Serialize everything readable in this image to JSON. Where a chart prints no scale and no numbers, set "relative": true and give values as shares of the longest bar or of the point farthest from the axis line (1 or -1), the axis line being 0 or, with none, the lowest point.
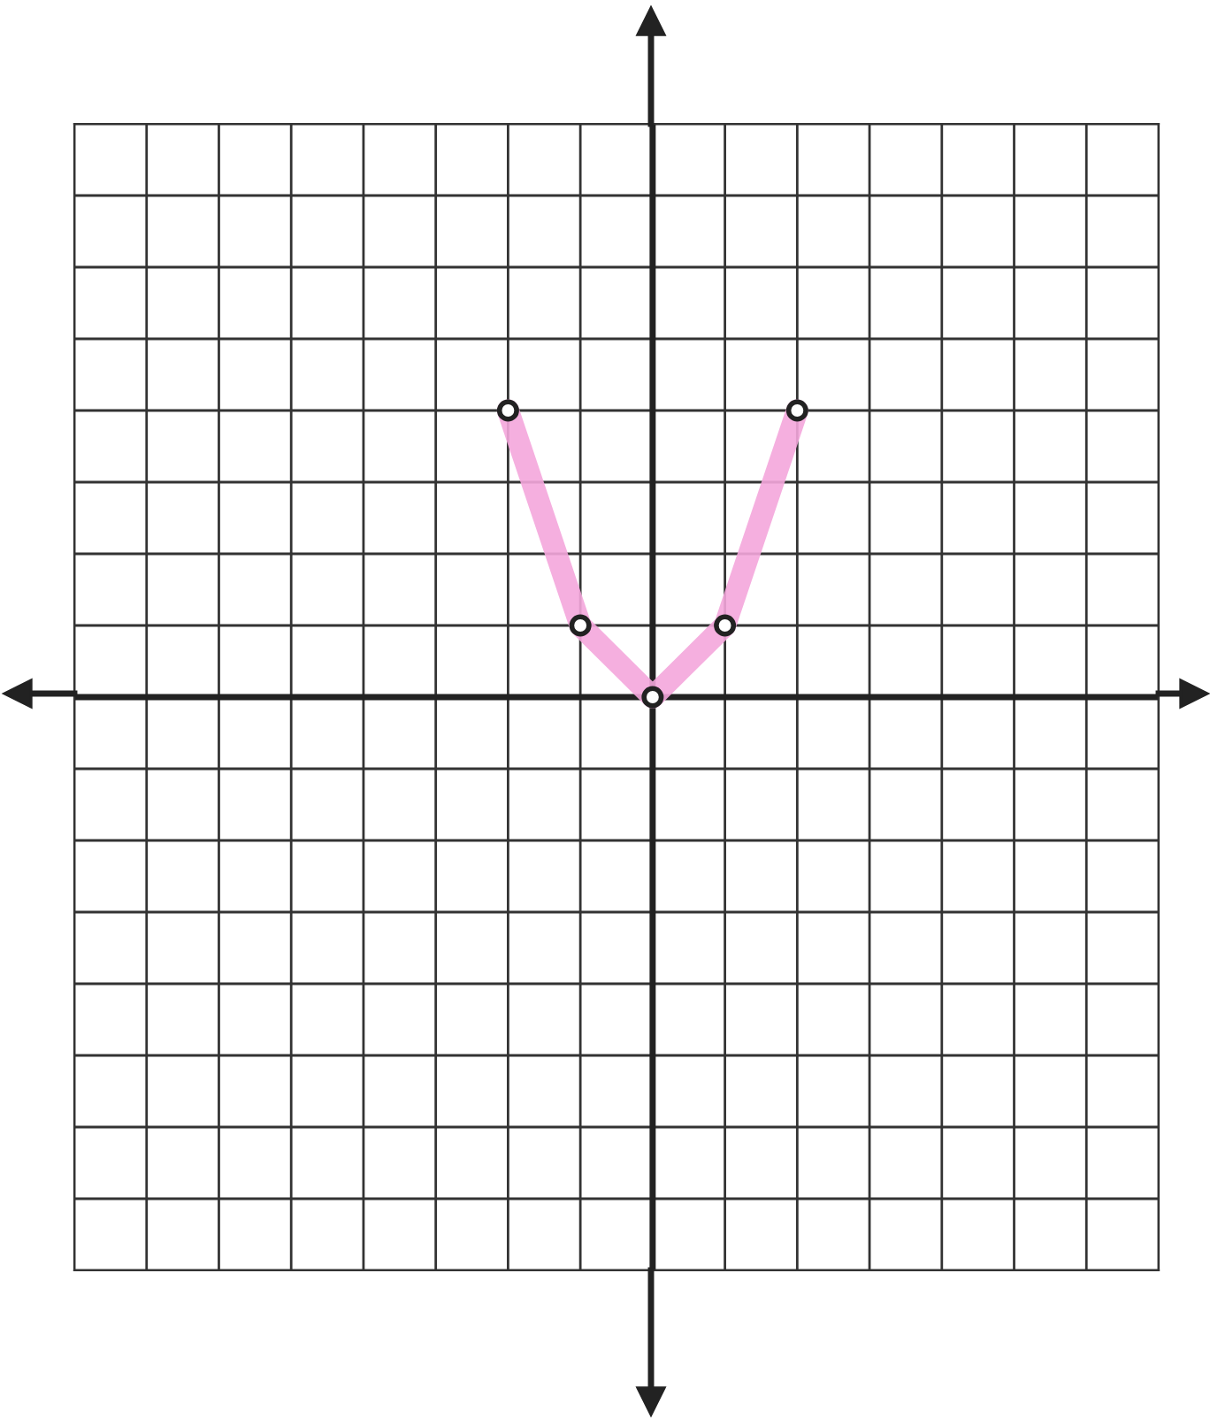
{
  "chart_data": {
    "type": "line",
    "relative": true,
    "categories": [
      null,
      null,
      null,
      null,
      null
    ],
    "series": [
      {
        "color": "#f4a6dc",
        "values": [
          1,
          0.25,
          0,
          0.25,
          1
        ]
      }
    ],
    "marker": "circle",
    "line_style": "solid",
    "grid": true
  }
}
